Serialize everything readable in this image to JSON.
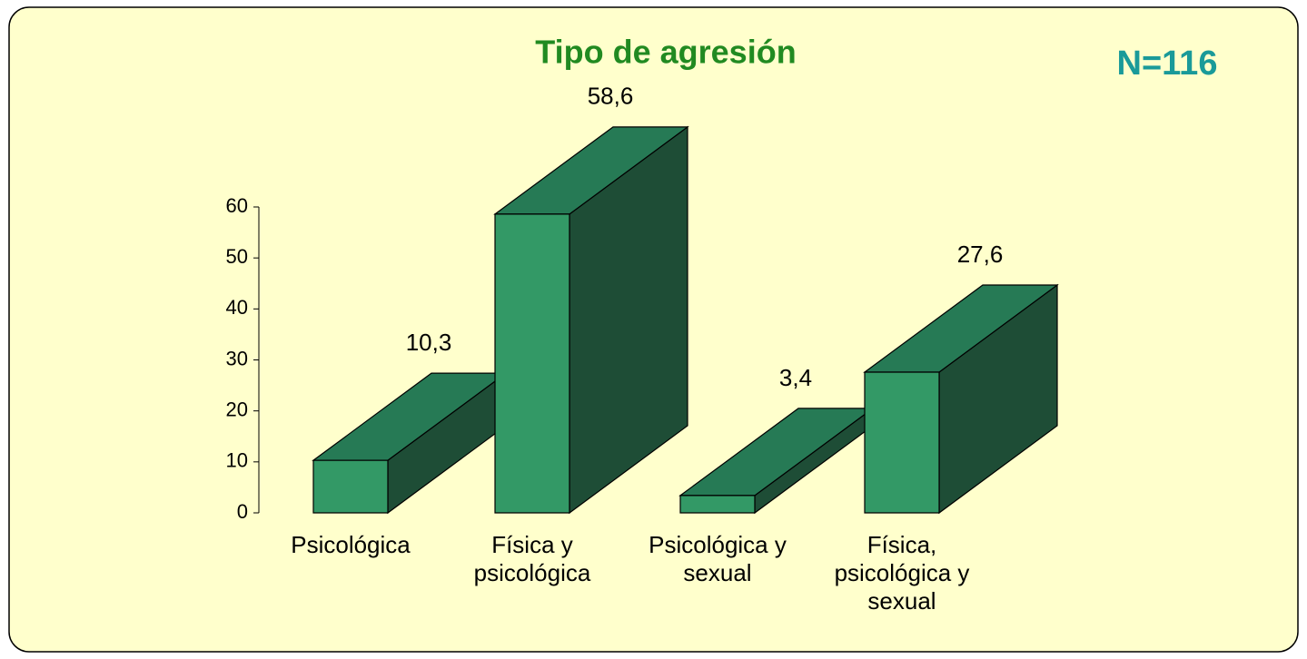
{
  "chart_data": {
    "type": "bar3d",
    "title": "Tipo de agresión",
    "annotation": "N=116",
    "categories": [
      "Psicológica",
      "Física y psicológica",
      "Psicológica y sexual",
      "Física, psicológica y sexual"
    ],
    "values": [
      10.3,
      58.6,
      3.4,
      27.6
    ],
    "value_labels": [
      "10,3",
      "58,6",
      "3,4",
      "27,6"
    ],
    "color": "#339966",
    "ylim": [
      0,
      60
    ],
    "yticks": [
      0,
      10,
      20,
      30,
      40,
      50,
      60
    ]
  }
}
